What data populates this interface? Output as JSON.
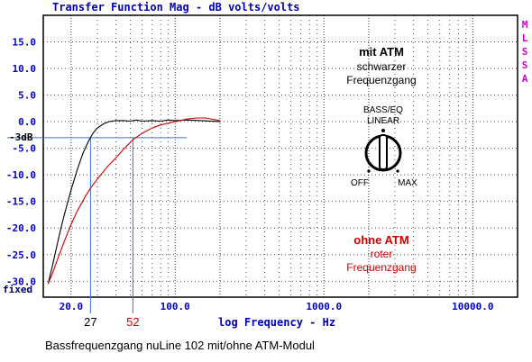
{
  "chart_data": {
    "type": "line",
    "title": "Transfer Function Mag - dB volts/volts",
    "xlabel": "log Frequency - Hz",
    "ylabel": "",
    "x_scale": "log",
    "xlim": [
      13,
      20000
    ],
    "ylim": [
      -33,
      20
    ],
    "x_ticks": [
      {
        "value": 20,
        "label": "20.0"
      },
      {
        "value": 100,
        "label": "100.0"
      },
      {
        "value": 1000,
        "label": "1000.0"
      },
      {
        "value": 10000,
        "label": "10000.0"
      }
    ],
    "y_ticks": [
      {
        "value": 15,
        "label": "15.0"
      },
      {
        "value": 10,
        "label": "10.0"
      },
      {
        "value": 5,
        "label": "5.0"
      },
      {
        "value": 0,
        "label": "0.0"
      },
      {
        "value": -5,
        "label": "-5.0"
      },
      {
        "value": -10,
        "label": "-10.0"
      },
      {
        "value": -15,
        "label": "-15.0"
      },
      {
        "value": -20,
        "label": "-20.0"
      },
      {
        "value": -25,
        "label": "-25.0"
      },
      {
        "value": -30,
        "label": "-30.0"
      }
    ],
    "y_bottom_label": "fixed",
    "grid": true,
    "series": [
      {
        "color": "#000000",
        "points": [
          [
            14,
            -30.5
          ],
          [
            15,
            -27
          ],
          [
            16,
            -23.5
          ],
          [
            17,
            -20.3
          ],
          [
            18,
            -17.5
          ],
          [
            20,
            -12.8
          ],
          [
            22,
            -9
          ],
          [
            24,
            -6
          ],
          [
            26,
            -3.8
          ],
          [
            28,
            -2.2
          ],
          [
            30,
            -1.2
          ],
          [
            33,
            -0.4
          ],
          [
            36,
            0
          ],
          [
            40,
            0.2
          ],
          [
            45,
            0.2
          ],
          [
            50,
            0.1
          ],
          [
            55,
            0.3
          ],
          [
            60,
            0.1
          ],
          [
            70,
            0.2
          ],
          [
            80,
            0.1
          ],
          [
            90,
            0.3
          ],
          [
            100,
            0.2
          ],
          [
            120,
            0.3
          ],
          [
            150,
            0.2
          ],
          [
            200,
            0
          ]
        ]
      },
      {
        "color": "#cc0000",
        "points": [
          [
            14,
            -30.5
          ],
          [
            15,
            -28.5
          ],
          [
            16,
            -26.3
          ],
          [
            18,
            -22.5
          ],
          [
            20,
            -19.3
          ],
          [
            22,
            -16.8
          ],
          [
            25,
            -14
          ],
          [
            27,
            -12.5
          ],
          [
            30,
            -10.8
          ],
          [
            35,
            -8.5
          ],
          [
            40,
            -6.8
          ],
          [
            45,
            -5.2
          ],
          [
            52,
            -3.4
          ],
          [
            60,
            -2.2
          ],
          [
            70,
            -1.2
          ],
          [
            80,
            -0.6
          ],
          [
            100,
            0
          ],
          [
            120,
            0.5
          ],
          [
            140,
            0.7
          ],
          [
            160,
            0.7
          ],
          [
            200,
            0.2
          ]
        ]
      }
    ],
    "cutoff_level": {
      "value": -3,
      "label": "-3dB"
    },
    "markers": [
      {
        "x": 27,
        "label": "27",
        "color": "#000000"
      },
      {
        "x": 52,
        "label": "52",
        "color": "#cc0000"
      }
    ],
    "side_label": "MLSSA",
    "caption": "Bassfrequenzgang nuLine 102 mit/ohne ATM-Modul",
    "annotations": {
      "with_atm": {
        "title": "mit ATM",
        "line1": "schwarzer",
        "line2": "Frequenzgang"
      },
      "without_atm": {
        "title": "ohne ATM",
        "line1": "roter",
        "line2": "Frequenzgang"
      },
      "knob": {
        "label1": "BASS/EQ",
        "label2": "LINEAR",
        "off": "OFF",
        "max": "MAX"
      }
    }
  },
  "colors": {
    "title_blue": "#0000bb",
    "axis_blue": "#0000cc",
    "marker_line": "#3377cc",
    "red_text": "#cc0000",
    "side_label": "#cc00cc"
  }
}
